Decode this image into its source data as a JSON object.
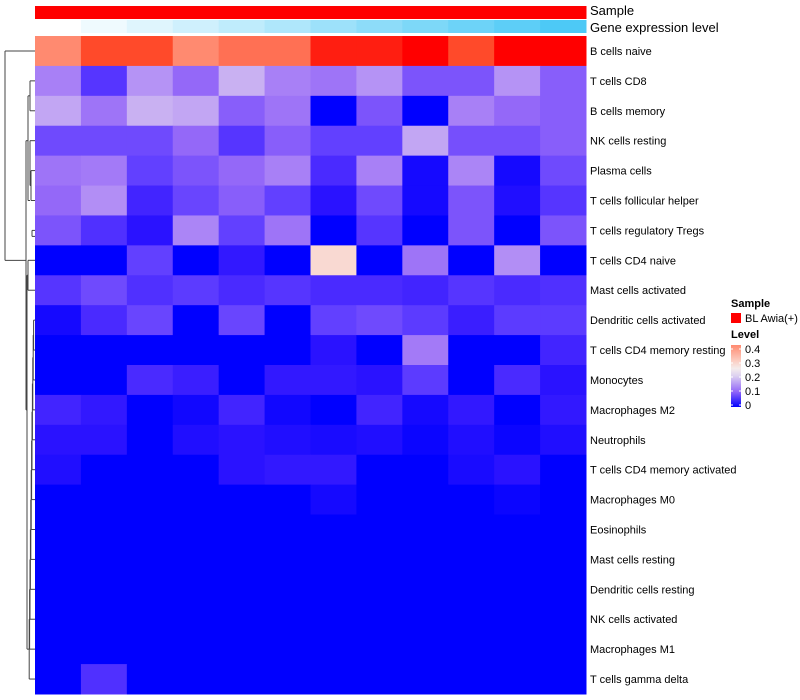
{
  "chart_data": {
    "type": "heatmap",
    "title": "",
    "annotations": {
      "sample": {
        "label": "Sample",
        "value": "BL Awia(+)",
        "color": "#FF0000"
      },
      "gene_expression": {
        "label": "Gene expression level",
        "levels": [
          0,
          0.09,
          0.18,
          0.27,
          0.36,
          0.45,
          0.55,
          0.64,
          0.73,
          0.82,
          0.91,
          1.0
        ],
        "low_color": "#FFFFFF",
        "high_color": "#4DC9F6"
      }
    },
    "rows": [
      "B cells naive",
      "T cells CD8",
      "B cells memory",
      "NK cells resting",
      "Plasma cells",
      "T cells follicular helper",
      "T cells regulatory  Tregs",
      "T cells CD4 naive",
      "Mast cells activated",
      "Dendritic cells activated",
      "T cells CD4 memory resting",
      "Monocytes",
      "Macrophages M2",
      "Neutrophils",
      "T cells CD4 memory activated",
      "Macrophages M0",
      "Eosinophils",
      "Mast cells resting",
      "Dendritic cells resting",
      "NK cells activated",
      "Macrophages M1",
      "T cells gamma delta"
    ],
    "n_columns": 12,
    "values": [
      [
        0.4,
        0.45,
        0.45,
        0.4,
        0.42,
        0.42,
        0.48,
        0.48,
        0.5,
        0.45,
        0.5,
        0.5
      ],
      [
        0.12,
        0.05,
        0.14,
        0.1,
        0.17,
        0.12,
        0.11,
        0.14,
        0.08,
        0.08,
        0.14,
        0.09
      ],
      [
        0.16,
        0.11,
        0.17,
        0.16,
        0.09,
        0.11,
        0.0,
        0.08,
        0.0,
        0.12,
        0.1,
        0.09
      ],
      [
        0.07,
        0.07,
        0.07,
        0.1,
        0.05,
        0.09,
        0.06,
        0.06,
        0.16,
        0.075,
        0.075,
        0.09
      ],
      [
        0.11,
        0.115,
        0.06,
        0.08,
        0.1,
        0.12,
        0.04,
        0.12,
        0.01,
        0.125,
        0.01,
        0.07
      ],
      [
        0.1,
        0.135,
        0.035,
        0.065,
        0.09,
        0.06,
        0.02,
        0.07,
        0.01,
        0.08,
        0.015,
        0.05
      ],
      [
        0.08,
        0.045,
        0.02,
        0.125,
        0.06,
        0.11,
        0.0,
        0.05,
        0.0,
        0.08,
        0.0,
        0.08
      ],
      [
        0.0,
        0.0,
        0.06,
        0.0,
        0.025,
        0.0,
        0.28,
        0.0,
        0.11,
        0.0,
        0.135,
        0.0
      ],
      [
        0.05,
        0.07,
        0.045,
        0.055,
        0.04,
        0.05,
        0.04,
        0.04,
        0.035,
        0.05,
        0.04,
        0.045
      ],
      [
        0.01,
        0.04,
        0.065,
        0.0,
        0.065,
        0.0,
        0.06,
        0.07,
        0.055,
        0.03,
        0.055,
        0.055
      ],
      [
        0.0,
        0.0,
        0.0,
        0.0,
        0.0,
        0.0,
        0.02,
        0.0,
        0.115,
        0.0,
        0.0,
        0.035
      ],
      [
        0.0,
        0.0,
        0.04,
        0.03,
        0.0,
        0.025,
        0.025,
        0.02,
        0.055,
        0.0,
        0.04,
        0.02
      ],
      [
        0.035,
        0.025,
        0.0,
        0.008,
        0.035,
        0.008,
        0.0,
        0.035,
        0.01,
        0.025,
        0.0,
        0.025
      ],
      [
        0.02,
        0.02,
        0.0,
        0.015,
        0.02,
        0.015,
        0.012,
        0.015,
        0.005,
        0.015,
        0.005,
        0.015
      ],
      [
        0.015,
        0.0,
        0.0,
        0.0,
        0.02,
        0.025,
        0.025,
        0.0,
        0.0,
        0.012,
        0.02,
        0.0
      ],
      [
        0.0,
        0.0,
        0.0,
        0.0,
        0.0,
        0.0,
        0.01,
        0.0,
        0.0,
        0.0,
        0.005,
        0.0
      ],
      [
        0,
        0,
        0,
        0,
        0,
        0,
        0,
        0,
        0,
        0,
        0,
        0
      ],
      [
        0,
        0,
        0,
        0,
        0,
        0,
        0,
        0,
        0,
        0,
        0,
        0
      ],
      [
        0,
        0,
        0,
        0,
        0,
        0,
        0,
        0,
        0,
        0,
        0,
        0
      ],
      [
        0,
        0,
        0,
        0,
        0,
        0,
        0,
        0,
        0,
        0,
        0,
        0
      ],
      [
        0,
        0,
        0,
        0,
        0,
        0,
        0,
        0,
        0,
        0,
        0,
        0
      ],
      [
        0.0,
        0.045,
        0.0,
        0.0,
        0.0,
        0.0,
        0.0,
        0.0,
        0.0,
        0.0,
        0.0,
        0.0
      ]
    ],
    "color_scale": {
      "low": "#0000FF",
      "mid": "#F4ECEC",
      "high": "#FF0000",
      "range": [
        0,
        0.5
      ]
    },
    "legend": {
      "sample_title": "Sample",
      "sample_entry": "BL Awia(+)",
      "level_title": "Level",
      "level_ticks": [
        "0.4",
        "0.3",
        "0.2",
        "0.1",
        "0"
      ],
      "placement": "right"
    }
  }
}
